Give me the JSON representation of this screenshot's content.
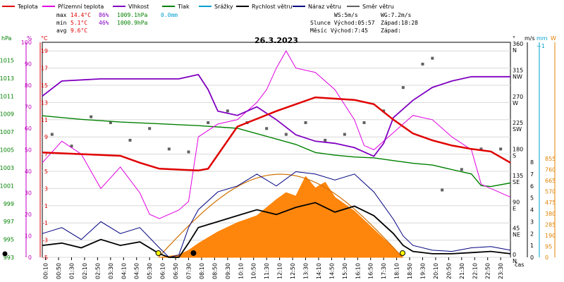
{
  "chart_data": {
    "type": "line",
    "title": "26.3.2023",
    "legend": [
      {
        "name": "Teplota",
        "color": "#e00000"
      },
      {
        "name": "Přízemní teplota",
        "color": "#e000e0"
      },
      {
        "name": "Vlhkost",
        "color": "#8000c0"
      },
      {
        "name": "Tlak",
        "color": "#008000"
      },
      {
        "name": "Srážky",
        "color": "#00a0d0"
      },
      {
        "name": "Rychlost větru",
        "color": "#000000"
      },
      {
        "name": "Náraz větru",
        "color": "#000080"
      },
      {
        "name": "Směr větru",
        "color": "#606060"
      }
    ],
    "stats": {
      "max": {
        "label": "max",
        "temp": "14.4°C",
        "hum": "86%",
        "press": "1009.1hPa",
        "rain": "0.0mm"
      },
      "min": {
        "label": "min",
        "temp": "5.1°C",
        "hum": "46%",
        "press": "1000.9hPa"
      },
      "avg": {
        "label": "avg",
        "temp": "9.6°C"
      }
    },
    "wind_info": {
      "ws": "WS:5m/s",
      "wg": "WG:7.2m/s"
    },
    "sun_info": {
      "sunrise": "Slunce Východ:05:57",
      "sunset": "Západ:18:28"
    },
    "moon_info": {
      "rise": "Měsíc  Východ:7:45",
      "set": "Západ:"
    },
    "axes": {
      "hpa": {
        "unit": "hPa",
        "ticks": [
          "993",
          "995",
          "997",
          "999",
          "1001",
          "1003",
          "1005",
          "1007",
          "1009",
          "1011",
          "1013",
          "1015"
        ],
        "color": "#008000"
      },
      "pct": {
        "unit": "%",
        "ticks": [
          "0",
          "10",
          "20",
          "30",
          "40",
          "50",
          "60",
          "70",
          "80",
          "90",
          "100"
        ],
        "color": "#c000c0"
      },
      "temp": {
        "unit": "°C",
        "ticks": [
          "-5",
          "-3",
          "-1",
          "1",
          "3",
          "5",
          "7",
          "9",
          "11",
          "13",
          "15",
          "17",
          "19"
        ],
        "color": "#e00000"
      },
      "dir": {
        "unit": "°",
        "ticks": [
          "0 N",
          "45 NE",
          "90 E",
          "135 SE",
          "180 S",
          "225 SW",
          "270 W",
          "315 NW",
          "360 N"
        ]
      },
      "ms": {
        "unit": "m/s",
        "ticks": [
          "0",
          "1",
          "2",
          "3",
          "4",
          "5",
          "6",
          "7",
          "8"
        ]
      },
      "mm": {
        "unit": "mm",
        "ticks": [
          "~1"
        ],
        "color": "#00a0d0"
      },
      "w": {
        "unit": "W",
        "ticks": [
          "0",
          "95",
          "190",
          "285",
          "380",
          "475",
          "570",
          "665",
          "760",
          "855"
        ],
        "color": "#e08000"
      },
      "time_unit": "čas",
      "time_ticks": [
        "00:10",
        "00:50",
        "01:30",
        "02:10",
        "02:50",
        "03:30",
        "04:10",
        "04:50",
        "05:30",
        "06:10",
        "06:50",
        "07:30",
        "08:10",
        "08:50",
        "09:30",
        "10:10",
        "10:50",
        "11:30",
        "12:10",
        "12:50",
        "13:30",
        "14:10",
        "14:50",
        "15:30",
        "16:10",
        "16:50",
        "17:30",
        "18:10",
        "18:50",
        "19:30",
        "20:10",
        "20:50",
        "21:30",
        "22:10",
        "22:50",
        "23:30"
      ]
    },
    "series": [
      {
        "name": "Teplota",
        "unit": "°C",
        "x": [
          0,
          2,
          4,
          5,
          6,
          8,
          8.5,
          10,
          12,
          14,
          16,
          17,
          18,
          19,
          20,
          21,
          22,
          23,
          24
        ],
        "y": [
          7.2,
          7.0,
          6.8,
          6.0,
          5.3,
          5.1,
          5.3,
          10.2,
          12.0,
          13.6,
          13.3,
          12.8,
          11.0,
          9.4,
          8.6,
          8.0,
          7.6,
          7.3,
          6.0
        ]
      },
      {
        "name": "Přízemní teplota",
        "unit": "°C",
        "x": [
          0,
          1,
          2,
          3,
          4,
          5,
          5.5,
          6,
          7,
          7.5,
          8,
          9,
          10,
          11,
          11.5,
          12,
          12.5,
          13,
          14,
          15,
          16,
          16.5,
          17,
          17.5,
          18,
          18.5,
          19,
          20,
          21,
          22,
          22.5,
          23,
          24
        ],
        "y": [
          6.0,
          8.5,
          7.0,
          3.0,
          5.5,
          2.5,
          0,
          -0.5,
          0.5,
          1.5,
          9.0,
          10.5,
          11.0,
          13.0,
          14.5,
          17.0,
          19.0,
          17.0,
          16.5,
          14.5,
          11.0,
          8.0,
          7.5,
          8.5,
          9.5,
          10.5,
          11.5,
          11.0,
          9.0,
          7.5,
          3.5,
          3.0,
          2.0
        ]
      },
      {
        "name": "Vlhkost",
        "unit": "%",
        "x": [
          0,
          1,
          3,
          5,
          7,
          8,
          8.5,
          9,
          10,
          11,
          12,
          13,
          14,
          15,
          16,
          16.5,
          17,
          17.5,
          18,
          19,
          20,
          21,
          22,
          23,
          24
        ],
        "y": [
          75,
          82,
          83,
          83,
          83,
          85,
          78,
          68,
          66,
          70,
          64,
          57,
          54,
          53,
          51,
          49,
          47,
          53,
          65,
          73,
          79,
          82,
          84,
          84,
          84
        ]
      },
      {
        "name": "Tlak",
        "unit": "hPa",
        "x": [
          0,
          2,
          4,
          6,
          8,
          10,
          11,
          12,
          13,
          14,
          15,
          16,
          17,
          18,
          19,
          20,
          21,
          22,
          22.5,
          23,
          24
        ],
        "y": [
          1008.8,
          1008.4,
          1008.1,
          1007.9,
          1007.7,
          1007.4,
          1006.8,
          1006.2,
          1005.6,
          1004.7,
          1004.4,
          1004.2,
          1004.1,
          1003.8,
          1003.5,
          1003.3,
          1002.8,
          1002.3,
          1001.0,
          1000.9,
          1001.3
        ]
      },
      {
        "name": "Rychlost větru",
        "unit": "m/s",
        "x": [
          0,
          1,
          2,
          3,
          4,
          5,
          6,
          6.5,
          7,
          7.5,
          8,
          9,
          10,
          11,
          12,
          13,
          14,
          15,
          16,
          17,
          18,
          18.5,
          19,
          20,
          21,
          22,
          23,
          24
        ],
        "y": [
          1.0,
          1.2,
          0.8,
          1.5,
          1.0,
          1.3,
          0.3,
          0,
          0,
          1.2,
          2.5,
          3.0,
          3.5,
          4.0,
          3.6,
          4.2,
          4.6,
          3.8,
          4.3,
          3.5,
          2.0,
          1.0,
          0.5,
          0.3,
          0.3,
          0.4,
          0.5,
          0.3
        ]
      },
      {
        "name": "Náraz větru",
        "unit": "m/s",
        "x": [
          0,
          1,
          2,
          3,
          4,
          5,
          6,
          6.5,
          7,
          7.5,
          8,
          9,
          10,
          11,
          12,
          13,
          14,
          15,
          16,
          17,
          18,
          18.5,
          19,
          20,
          21,
          22,
          23,
          24
        ],
        "y": [
          2.0,
          2.5,
          1.5,
          3.0,
          2.0,
          2.5,
          0.8,
          0,
          0.2,
          2.5,
          4.0,
          5.5,
          6.0,
          7.0,
          6.0,
          7.2,
          7.0,
          6.5,
          7.0,
          5.5,
          3.2,
          1.8,
          1.0,
          0.6,
          0.5,
          0.8,
          0.9,
          0.6
        ]
      },
      {
        "name": "Sluneční záření",
        "unit": "W",
        "x": [
          6,
          7,
          7.5,
          8,
          9,
          10,
          11,
          12,
          12.5,
          13,
          13.5,
          14,
          14.5,
          15,
          16,
          17,
          18,
          18.5
        ],
        "y": [
          0,
          20,
          60,
          120,
          220,
          300,
          360,
          500,
          560,
          530,
          700,
          600,
          650,
          520,
          400,
          240,
          80,
          0
        ]
      },
      {
        "name": "Směr větru",
        "unit": "°",
        "x": [
          0.5,
          1.5,
          2.5,
          3.5,
          4.5,
          5.5,
          6.5,
          7.5,
          8.5,
          9.5,
          10.5,
          11.5,
          12.5,
          13.5,
          14.5,
          15.5,
          16.5,
          17.5,
          18.5,
          19.5,
          20,
          20.5,
          21.5,
          22.5,
          23.5
        ],
        "y": [
          210,
          190,
          240,
          230,
          200,
          220,
          185,
          180,
          230,
          250,
          230,
          220,
          210,
          230,
          200,
          210,
          230,
          250,
          290,
          330,
          340,
          115,
          150,
          185,
          185
        ]
      }
    ]
  }
}
